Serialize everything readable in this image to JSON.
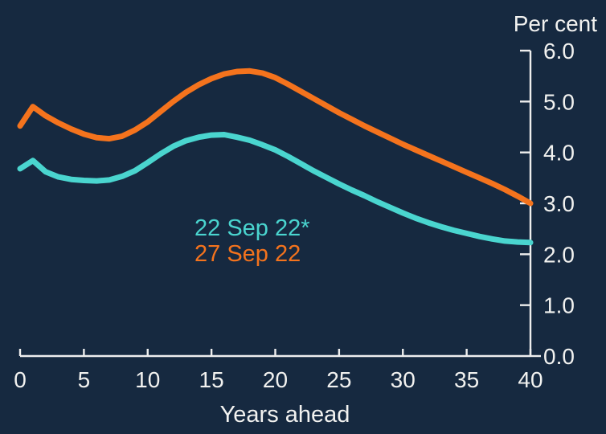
{
  "chart_data": {
    "type": "line",
    "unit_label": "Per cent",
    "xlabel": "Years ahead",
    "x": [
      0,
      1,
      2,
      3,
      4,
      5,
      6,
      7,
      8,
      9,
      10,
      11,
      12,
      13,
      14,
      15,
      16,
      17,
      18,
      19,
      20,
      21,
      22,
      23,
      24,
      25,
      26,
      27,
      28,
      29,
      30,
      31,
      32,
      33,
      34,
      35,
      36,
      37,
      38,
      39,
      40
    ],
    "series": [
      {
        "name": "22 Sep 22*",
        "color": "#4ad5cf",
        "values": [
          3.68,
          3.84,
          3.62,
          3.52,
          3.47,
          3.45,
          3.44,
          3.46,
          3.53,
          3.64,
          3.8,
          3.97,
          4.12,
          4.23,
          4.3,
          4.34,
          4.35,
          4.3,
          4.24,
          4.15,
          4.05,
          3.92,
          3.78,
          3.64,
          3.51,
          3.38,
          3.26,
          3.15,
          3.03,
          2.92,
          2.81,
          2.71,
          2.62,
          2.54,
          2.47,
          2.41,
          2.35,
          2.3,
          2.26,
          2.24,
          2.23
        ]
      },
      {
        "name": "27 Sep 22",
        "color": "#f4731d",
        "values": [
          4.52,
          4.9,
          4.72,
          4.58,
          4.46,
          4.36,
          4.29,
          4.27,
          4.32,
          4.44,
          4.6,
          4.8,
          5.0,
          5.18,
          5.33,
          5.45,
          5.54,
          5.59,
          5.6,
          5.56,
          5.47,
          5.34,
          5.2,
          5.06,
          4.92,
          4.78,
          4.65,
          4.52,
          4.4,
          4.28,
          4.16,
          4.05,
          3.94,
          3.83,
          3.72,
          3.61,
          3.5,
          3.39,
          3.27,
          3.14,
          3.0
        ]
      }
    ],
    "xlim": [
      0,
      40
    ],
    "ylim": [
      0,
      6.0
    ],
    "x_ticks": [
      0,
      5,
      10,
      15,
      20,
      25,
      30,
      35,
      40
    ],
    "y_ticks": [
      0,
      1,
      2,
      3,
      4,
      5,
      6
    ],
    "y_tick_labels": [
      "0.0",
      "1.0",
      "2.0",
      "3.0",
      "4.0",
      "5.0",
      "6.0"
    ],
    "grid": false,
    "legend_position": "center-of-plot",
    "y_axis_side": "right",
    "colors": {
      "background": "#162940",
      "axis": "#eeeeee",
      "text": "#f2f2f0"
    }
  }
}
